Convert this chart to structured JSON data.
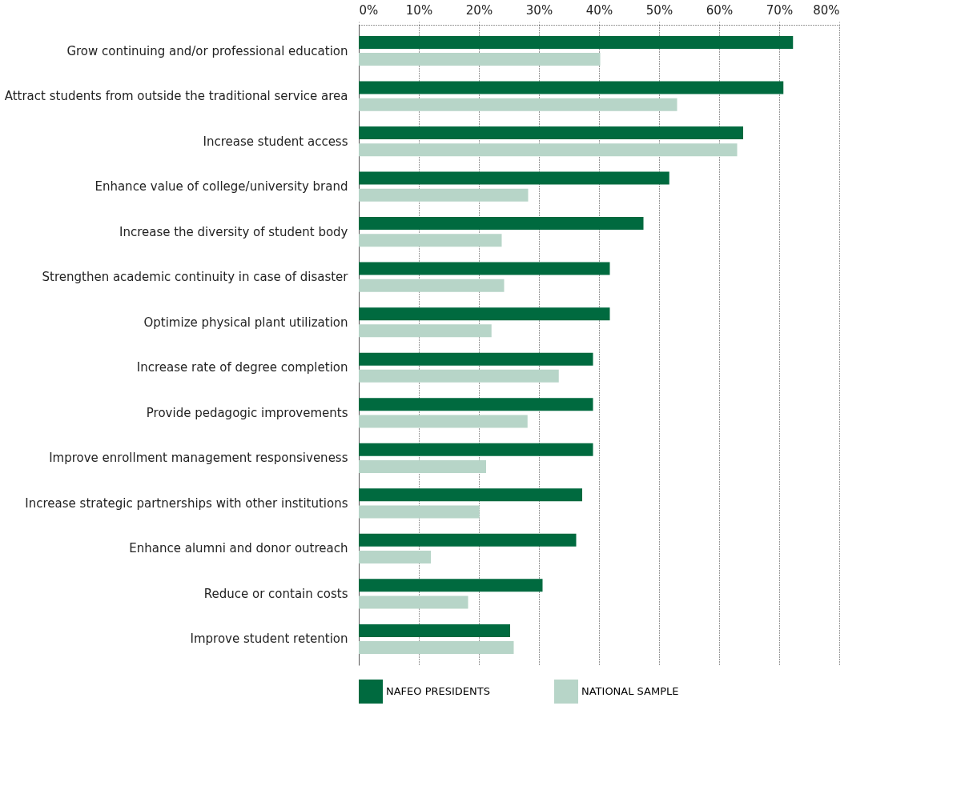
{
  "chart_data": {
    "type": "bar",
    "orientation": "horizontal",
    "categories": [
      "Grow continuing and/or professional education",
      "Attract students from outside the traditional service area",
      "Increase student access",
      "Enhance value of college/university brand",
      "Increase the diversity of student body",
      "Strengthen academic continuity in case of disaster",
      "Optimize physical plant utilization",
      "Increase rate of degree completion",
      "Provide pedagogic improvements",
      "Improve enrollment management responsiveness",
      "Increase strategic partnerships with other institutions",
      "Enhance alumni and donor outreach",
      "Reduce or contain costs",
      "Improve student retention"
    ],
    "series": [
      {
        "name": "NAFEO PRESIDENTS",
        "color": "#006a3f",
        "values": [
          72.3,
          70.7,
          64,
          51.7,
          47.4,
          41.8,
          41.8,
          39,
          39,
          39,
          37.2,
          36.2,
          30.6,
          25.2
        ]
      },
      {
        "name": "NATIONAL SAMPLE",
        "color": "#b7d5c8",
        "values": [
          40.2,
          53,
          63,
          28.2,
          23.8,
          24.2,
          22.1,
          33.3,
          28.1,
          21.2,
          20.1,
          12,
          18.2,
          25.8
        ]
      }
    ],
    "xlim": [
      0,
      80
    ],
    "xticks": [
      {
        "value": 0,
        "label": "0%"
      },
      {
        "value": 10,
        "label": "10%"
      },
      {
        "value": 20,
        "label": "20%"
      },
      {
        "value": 30,
        "label": "30%"
      },
      {
        "value": 40,
        "label": "40%"
      },
      {
        "value": 50,
        "label": "50%"
      },
      {
        "value": 60,
        "label": "60%"
      },
      {
        "value": 70,
        "label": "70%"
      },
      {
        "value": 80,
        "label": "80%"
      }
    ],
    "grid": "x",
    "legend": "bottom"
  }
}
